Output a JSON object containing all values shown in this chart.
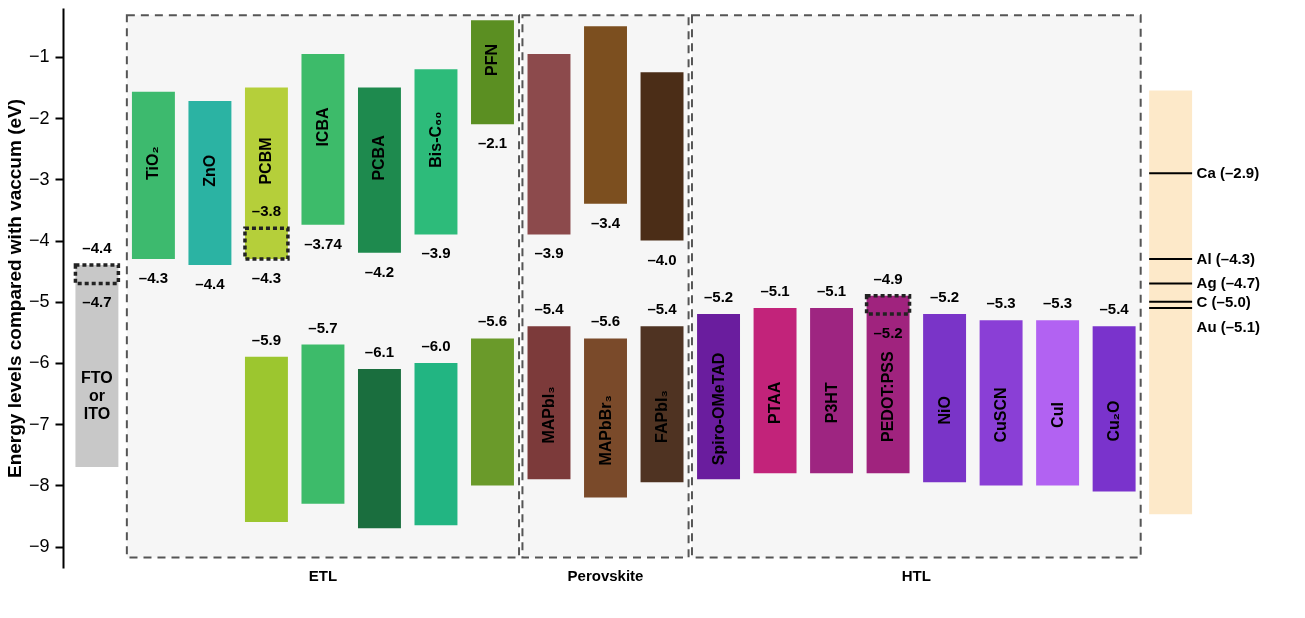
{
  "chart_data": {
    "type": "bar",
    "ylabel": "Energy levels compared with vaccum (eV)",
    "categories": [
      "FTO or ITO",
      "TiO₂",
      "ZnO",
      "PCBM",
      "ICBA",
      "PCBA",
      "Bis-C₆₀",
      "PFN",
      "MAPbI₃",
      "MAPbBr₃",
      "FAPbI₃",
      "Spiro-OMeTAD",
      "PTAA",
      "P3HT",
      "PEDOT:PSS",
      "NiO",
      "CuSCN",
      "CuI",
      "Cu₂O",
      null
    ],
    "series": [
      {
        "base": [
          null,
          -1.57,
          -1.72,
          -1.5,
          -0.95,
          -1.5,
          -1.2,
          -0.4,
          -0.95,
          -0.5,
          -1.25,
          null,
          null,
          null,
          null,
          null,
          null,
          null,
          null,
          -8.47
        ],
        "values": [
          null,
          -2.73,
          -2.68,
          -2.8,
          -2.79,
          -2.7,
          -2.7,
          -1.7,
          -2.95,
          -2.9,
          -2.75,
          null,
          null,
          null,
          null,
          null,
          null,
          null,
          null,
          6.92
        ],
        "colors": [
          null,
          "#3dba6e",
          "#2bb3a3",
          "#b5cf3a",
          "#3dbb6a",
          "#1e8a4e",
          "#2dbb7a",
          "#5b8f22",
          "#8c4a4c",
          "#7c4f1f",
          "#4b2d17",
          null,
          null,
          null,
          null,
          null,
          null,
          null,
          null,
          "#fde9c9"
        ]
      },
      {
        "base": [
          -7.7,
          null,
          null,
          -8.6,
          -8.3,
          -8.7,
          -8.65,
          -8.0,
          -7.9,
          -8.2,
          -7.95,
          -7.9,
          -7.8,
          -7.8,
          -7.8,
          -7.95,
          -8.0,
          -8.0,
          -8.1,
          null
        ],
        "values": [
          3.3,
          null,
          null,
          2.7,
          2.6,
          2.6,
          2.65,
          2.4,
          2.5,
          2.6,
          2.55,
          2.7,
          2.7,
          2.7,
          2.9,
          2.75,
          2.7,
          2.7,
          2.7,
          null
        ],
        "colors": [
          "#c8c8c8",
          null,
          null,
          "#9cc62f",
          "#3dbb6a",
          "#1a6e3e",
          "#22b582",
          "#6a9a2a",
          "#7c3a3a",
          "#7a4a2a",
          "#4f3322",
          "#6a1d9e",
          "#c2237a",
          "#9e2581",
          "#a0237e",
          "#7a34c8",
          "#8a3fd6",
          "#b262f2",
          "#7a33cc",
          null
        ]
      },
      {
        "line_style": "dotted",
        "color": "#222222",
        "base": [
          -4.7,
          null,
          null,
          -4.3,
          null,
          null,
          null,
          null,
          null,
          null,
          null,
          null,
          null,
          null,
          -5.2,
          null,
          null,
          null,
          null,
          null
        ],
        "values": [
          0.3,
          null,
          null,
          0.5,
          null,
          null,
          null,
          null,
          null,
          null,
          null,
          null,
          null,
          null,
          0.3,
          null,
          null,
          null,
          null,
          null
        ]
      }
    ],
    "bands": [
      {
        "axis": "x",
        "from": "TiO₂",
        "to": "PFN",
        "label": "ETL"
      },
      {
        "axis": "x",
        "from": "MAPbI₃",
        "to": "FAPbI₃",
        "label": "Perovskite"
      },
      {
        "axis": "x",
        "from": "Spiro-OMeTAD",
        "to": "Cu₂O",
        "label": "HTL"
      }
    ],
    "ref_lines": [
      {
        "axis": "y",
        "value": -2.9,
        "label": "Ca (–2.9)"
      },
      {
        "axis": "y",
        "value": -4.3,
        "label": "Al (–4.3)"
      },
      {
        "axis": "y",
        "value": -4.7,
        "label": "Ag (–4.7)"
      },
      {
        "axis": "y",
        "value": -5.0,
        "label": "C (–5.0)"
      },
      {
        "axis": "y",
        "value": -5.1,
        "label": "Au (–5.1)"
      }
    ],
    "annotations": [
      {
        "text": "–4.4",
        "x": "FTO or ITO",
        "y": -4.4
      },
      {
        "text": "–4.7",
        "x": "FTO or ITO",
        "y": -4.7
      },
      {
        "text": "–4.3",
        "x": "TiO₂",
        "y": -4.3
      },
      {
        "text": "–4.4",
        "x": "ZnO",
        "y": -4.4
      },
      {
        "text": "–3.8",
        "x": "PCBM",
        "y": -3.8
      },
      {
        "text": "–4.3",
        "x": "PCBM",
        "y": -4.3
      },
      {
        "text": "–3.74",
        "x": "ICBA",
        "y": -3.74
      },
      {
        "text": "–4.2",
        "x": "PCBA",
        "y": -4.2
      },
      {
        "text": "–3.9",
        "x": "Bis-C₆₀",
        "y": -3.9
      },
      {
        "text": "–2.1",
        "x": "PFN",
        "y": -2.1
      },
      {
        "text": "–5.9",
        "x": "PCBM",
        "y": -5.9
      },
      {
        "text": "–5.7",
        "x": "ICBA",
        "y": -5.7
      },
      {
        "text": "–6.1",
        "x": "PCBA",
        "y": -6.1
      },
      {
        "text": "–6.0",
        "x": "Bis-C₆₀",
        "y": -6.0
      },
      {
        "text": "–5.6",
        "x": "PFN",
        "y": -5.6
      },
      {
        "text": "–3.9",
        "x": "MAPbI₃",
        "y": -3.9
      },
      {
        "text": "–3.4",
        "x": "MAPbBr₃",
        "y": -3.4
      },
      {
        "text": "–4.0",
        "x": "FAPbI₃",
        "y": -4.0
      },
      {
        "text": "–5.4",
        "x": "MAPbI₃",
        "y": -5.4
      },
      {
        "text": "–5.6",
        "x": "MAPbBr₃",
        "y": -5.6
      },
      {
        "text": "–5.4",
        "x": "FAPbI₃",
        "y": -5.4
      },
      {
        "text": "–5.2",
        "x": "Spiro-OMeTAD",
        "y": -5.2
      },
      {
        "text": "–5.1",
        "x": "PTAA",
        "y": -5.1
      },
      {
        "text": "–5.1",
        "x": "P3HT",
        "y": -5.1
      },
      {
        "text": "–4.9",
        "x": "PEDOT:PSS",
        "y": -4.9
      },
      {
        "text": "–5.2",
        "x": "PEDOT:PSS",
        "y": -5.2
      },
      {
        "text": "–5.2",
        "x": "NiO",
        "y": -5.2
      },
      {
        "text": "–5.3",
        "x": "CuSCN",
        "y": -5.3
      },
      {
        "text": "–5.3",
        "x": "CuI",
        "y": -5.3
      },
      {
        "text": "–5.4",
        "x": "Cu₂O",
        "y": -5.4
      }
    ],
    "ylim": [
      -9.35,
      -0.2
    ],
    "yticks": [
      -1,
      -2,
      -3,
      -4,
      -5,
      -6,
      -7,
      -8,
      -9
    ],
    "grid": false,
    "tick_labels": "y"
  }
}
